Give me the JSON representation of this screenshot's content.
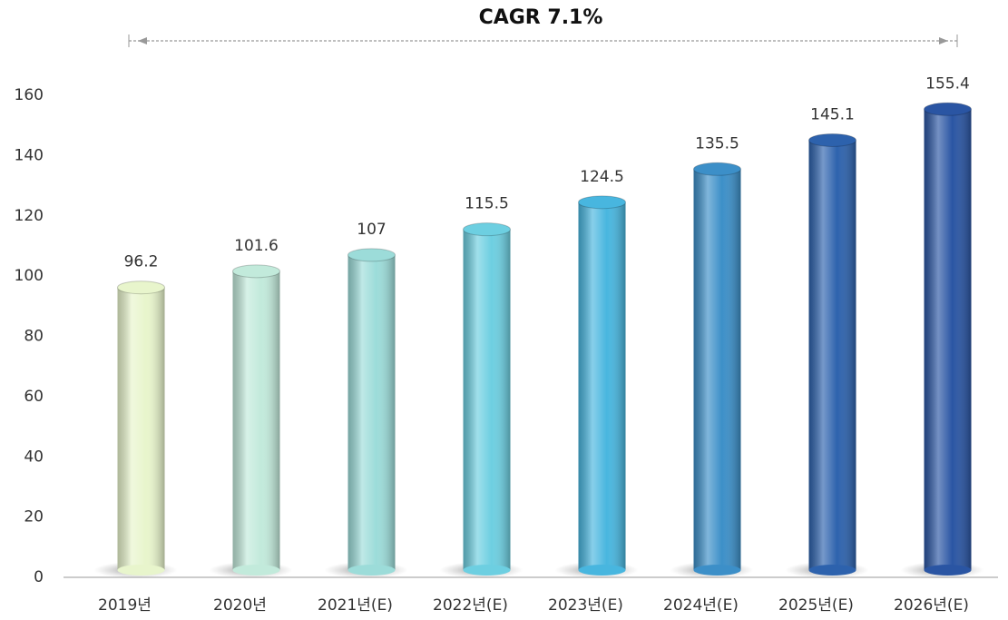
{
  "chart_data": {
    "type": "bar",
    "title": "CAGR 7.1%",
    "categories": [
      "2019년",
      "2020년",
      "2021년(E)",
      "2022년(E)",
      "2023년(E)",
      "2024년(E)",
      "2025년(E)",
      "2026년(E)"
    ],
    "values": [
      96.2,
      101.6,
      107,
      115.5,
      124.5,
      135.5,
      145.1,
      155.4
    ],
    "colors": [
      "#e8f5cc",
      "#c2eadb",
      "#9cdcd9",
      "#6dcfe1",
      "#48b6df",
      "#3c8fc8",
      "#2d62ad",
      "#2a55a3"
    ],
    "ylim": [
      0,
      160
    ],
    "yticks": [
      0,
      20,
      40,
      60,
      80,
      100,
      120,
      140,
      160
    ],
    "grid": false
  }
}
